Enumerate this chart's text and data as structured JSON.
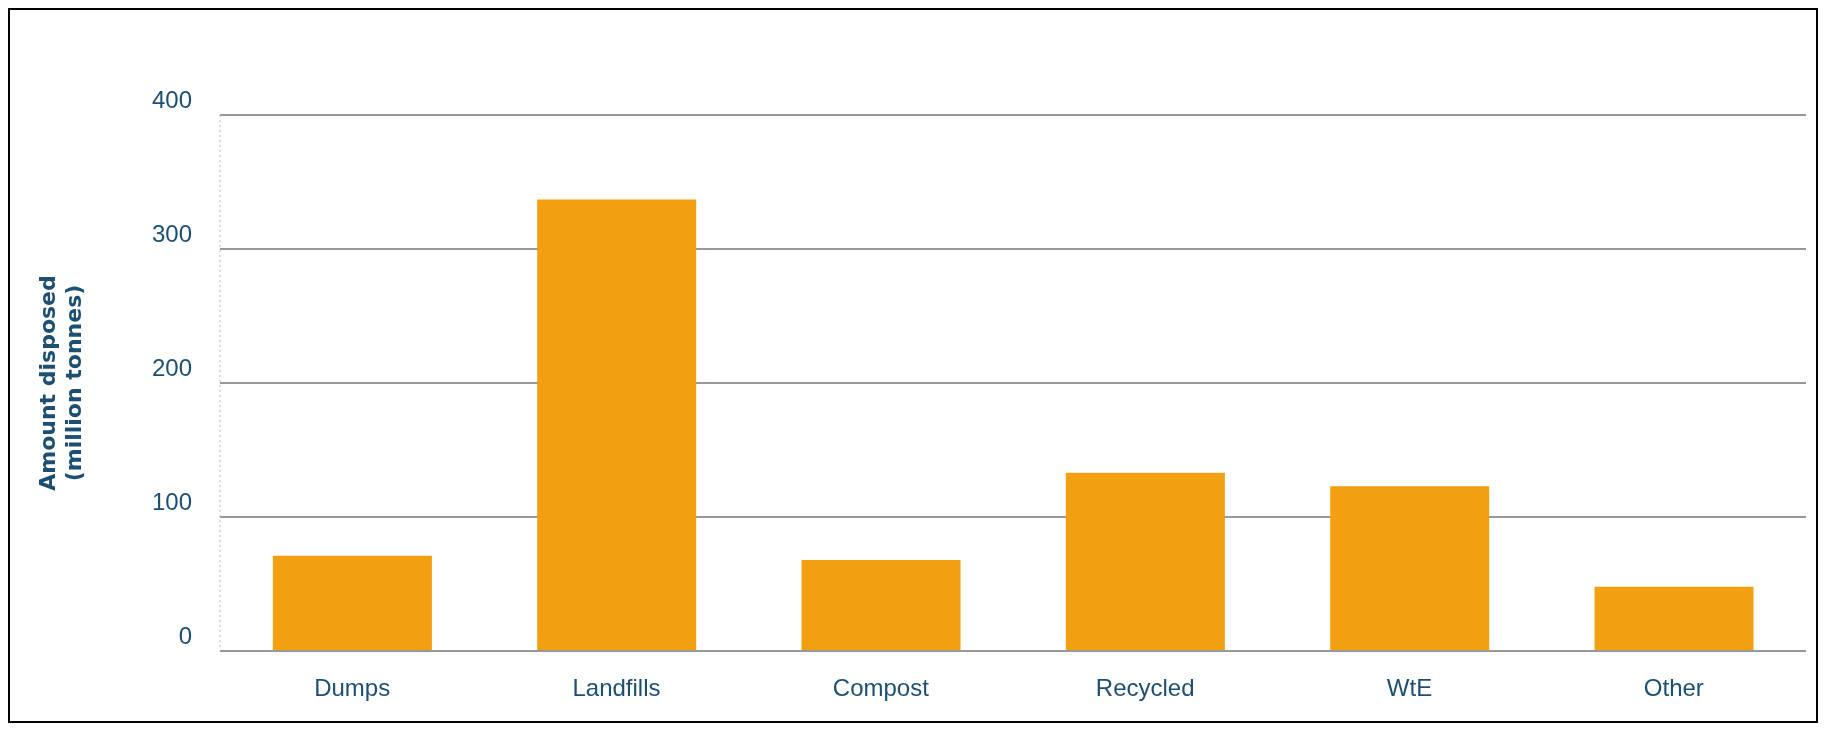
{
  "chart_data": {
    "type": "bar",
    "ylabel": "Amount disposed\n(million tonnes)",
    "categories": [
      "Dumps",
      "Landfills",
      "Compost",
      "Recycled",
      "WtE",
      "Other"
    ],
    "values": [
      71,
      337,
      68,
      133,
      123,
      48
    ],
    "color": "#f29f12",
    "ylim": [
      0,
      400
    ],
    "yticks": [
      0,
      100,
      200,
      300,
      400
    ],
    "grid": "y"
  }
}
